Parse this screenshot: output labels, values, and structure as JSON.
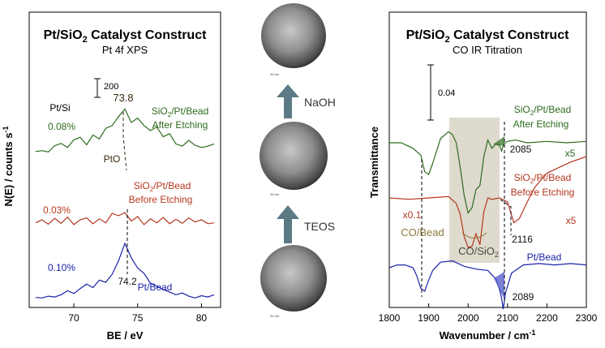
{
  "chart_data": [
    {
      "type": "line",
      "title": "Pt/SiO2 Catalyst Construct",
      "title_main": "Pt/SiO",
      "title_sub": "2",
      "title_rest": " Catalyst Construct",
      "subtitle": "Pt 4f XPS",
      "xlabel": "BE / eV",
      "ylabel": "N(E) / counts s",
      "ylabel_sup": "-1",
      "xlim": [
        66.5,
        81.5
      ],
      "xticks": [
        70,
        75,
        80
      ],
      "xtick_labels": [
        "70",
        "75",
        "80"
      ],
      "scale_bar": {
        "value": 200,
        "label": "200"
      },
      "column_header": "Pt/Si",
      "annotations": {
        "peak_label": "73.8",
        "pto_label": "PtO",
        "bead_peak_label": "74.2"
      },
      "series": [
        {
          "name": "SiO2/Pt/Bead After Etching",
          "label_line1_main": "SiO",
          "label_line1_sub": "2",
          "label_line1_rest": "/Pt/Bead",
          "label_line2": "After Etching",
          "ratio": "0.08%",
          "color": "#2e6b1f",
          "x": [
            67,
            67.5,
            68,
            68.5,
            69,
            69.5,
            70,
            70.5,
            71,
            71.5,
            72,
            72.5,
            73,
            73.5,
            74,
            74.5,
            75,
            75.5,
            76,
            76.5,
            77,
            77.5,
            78,
            78.5,
            79,
            79.5,
            80,
            80.5,
            81
          ],
          "y": [
            15,
            17,
            14,
            28,
            33,
            24,
            41,
            47,
            30,
            52,
            43,
            67,
            73,
            93,
            110,
            80,
            90,
            73,
            62,
            70,
            48,
            55,
            32,
            27,
            40,
            29,
            24,
            27,
            32
          ]
        },
        {
          "name": "SiO2/Pt/Bead Before Etching",
          "label_line1_main": "SiO",
          "label_line1_sub": "2",
          "label_line1_rest": "/Pt/Bead",
          "label_line2": "Before Etching",
          "ratio": "0.03%",
          "color": "#b5371f",
          "x": [
            67,
            67.5,
            68,
            68.5,
            69,
            69.5,
            70,
            70.5,
            71,
            71.5,
            72,
            72.5,
            73,
            73.5,
            74,
            74.5,
            75,
            75.5,
            76,
            76.5,
            77,
            77.5,
            78,
            78.5,
            79,
            79.5,
            80,
            80.5,
            81
          ],
          "y": [
            6,
            13,
            3,
            16,
            5,
            19,
            2,
            13,
            17,
            4,
            15,
            6,
            27,
            22,
            29,
            10,
            20,
            2,
            15,
            6,
            18,
            4,
            14,
            5,
            17,
            8,
            13,
            4,
            6
          ]
        },
        {
          "name": "Pt/Bead",
          "label_line1_main": "Pt/Bead",
          "ratio": "0.10%",
          "color": "#1a22a8",
          "x": [
            67,
            67.5,
            68,
            68.5,
            69,
            69.5,
            70,
            70.5,
            71,
            71.5,
            72,
            72.5,
            73,
            73.5,
            74,
            74.5,
            75,
            75.5,
            76,
            76.5,
            77,
            77.5,
            78,
            78.5,
            79,
            79.5,
            80,
            80.5,
            81
          ],
          "y": [
            6,
            5,
            9,
            7,
            12,
            21,
            15,
            26,
            36,
            28,
            45,
            40,
            58,
            88,
            127,
            95,
            72,
            60,
            38,
            31,
            24,
            18,
            12,
            16,
            9,
            5,
            10,
            7,
            12
          ]
        }
      ]
    },
    {
      "type": "line",
      "title": "Pt/SiO2 Catalyst Construct",
      "title_main": "Pt/SiO",
      "title_sub": "2",
      "title_rest": " Catalyst Construct",
      "subtitle": "CO IR Titration",
      "xlabel": "Wavenumber / cm",
      "xlabel_sup": "-1",
      "ylabel": "Transmittance",
      "xlim": [
        1800,
        2300
      ],
      "xticks": [
        1800,
        1900,
        2000,
        2100,
        2200,
        2300
      ],
      "xtick_labels": [
        "1800",
        "1900",
        "2000",
        "2100",
        "2200",
        "2300"
      ],
      "scale_bar": {
        "value": 0.04,
        "label": "0.04"
      },
      "annotations": {
        "co_bead": "CO/Bead",
        "co_sio2_main": "CO/SiO",
        "co_sio2_sub": "2",
        "x01": "x0.1",
        "peak_2085": "2085",
        "peak_2116": "2116",
        "peak_2089": "2089",
        "mult_top": "x5",
        "mult_mid": "x5"
      },
      "series": [
        {
          "name": "SiO2/Pt/Bead After Etching",
          "label_line1_main": "SiO",
          "label_line1_sub": "2",
          "label_line1_rest": "/Pt/Bead",
          "label_line2": "After Etching",
          "color": "#2e6b1f",
          "x": [
            1800,
            1830,
            1860,
            1880,
            1890,
            1900,
            1910,
            1930,
            1950,
            1960,
            1970,
            1980,
            1990,
            2000,
            2010,
            2020,
            2030,
            2040,
            2050,
            2060,
            2070,
            2080,
            2085,
            2090,
            2100,
            2120,
            2150,
            2200,
            2250,
            2300
          ],
          "y": [
            0.0,
            0.0,
            0.004,
            0.009,
            0.021,
            0.023,
            0.015,
            -0.003,
            -0.008,
            -0.006,
            0.0,
            0.018,
            0.038,
            0.051,
            0.047,
            0.034,
            0.031,
            0.01,
            -0.002,
            0.004,
            0.001,
            0.002,
            0.006,
            0.001,
            -0.001,
            -0.002,
            0.0,
            -0.001,
            0.0,
            -0.001
          ]
        },
        {
          "name": "SiO2/Pt/Bead Before Etching",
          "label_line1_main": "SiO",
          "label_line1_sub": "2",
          "label_line1_rest": "/Pt/Bead",
          "label_line2": "Before Etching",
          "color": "#b5371f",
          "x": [
            1800,
            1850,
            1900,
            1950,
            1970,
            1980,
            1990,
            2000,
            2010,
            2020,
            2030,
            2040,
            2050,
            2060,
            2080,
            2100,
            2116,
            2130,
            2150,
            2170,
            2200,
            2230,
            2260,
            2300
          ],
          "y": [
            0.0,
            0.001,
            0.0,
            -0.001,
            0.004,
            0.012,
            0.028,
            0.036,
            0.035,
            0.026,
            0.034,
            0.01,
            0.0,
            0.001,
            0.0,
            0.003,
            0.018,
            0.015,
            0.003,
            -0.008,
            -0.018,
            -0.022,
            -0.026,
            -0.03
          ]
        },
        {
          "name": "Pt/Bead",
          "label_line1_main": "Pt/Bead",
          "color": "#1a22a8",
          "x": [
            1800,
            1820,
            1840,
            1860,
            1870,
            1880,
            1890,
            1900,
            1910,
            1930,
            1960,
            1990,
            2020,
            2050,
            2070,
            2080,
            2085,
            2089,
            2095,
            2110,
            2140,
            2180,
            2220,
            2260,
            2300
          ],
          "y": [
            0.0,
            -0.002,
            -0.002,
            0.0,
            0.006,
            0.015,
            0.017,
            0.009,
            0.002,
            -0.004,
            -0.005,
            -0.001,
            0.001,
            0.002,
            0.008,
            0.016,
            0.022,
            0.03,
            0.018,
            0.004,
            -0.002,
            -0.003,
            -0.002,
            -0.003,
            -0.002
          ]
        }
      ]
    }
  ],
  "middle": {
    "labels": {
      "naoh": "NaOH",
      "teos": "TEOS"
    },
    "scale_bars": {
      "top": "20 nm",
      "middle": "20 nm",
      "bottom": "20 nm"
    }
  }
}
